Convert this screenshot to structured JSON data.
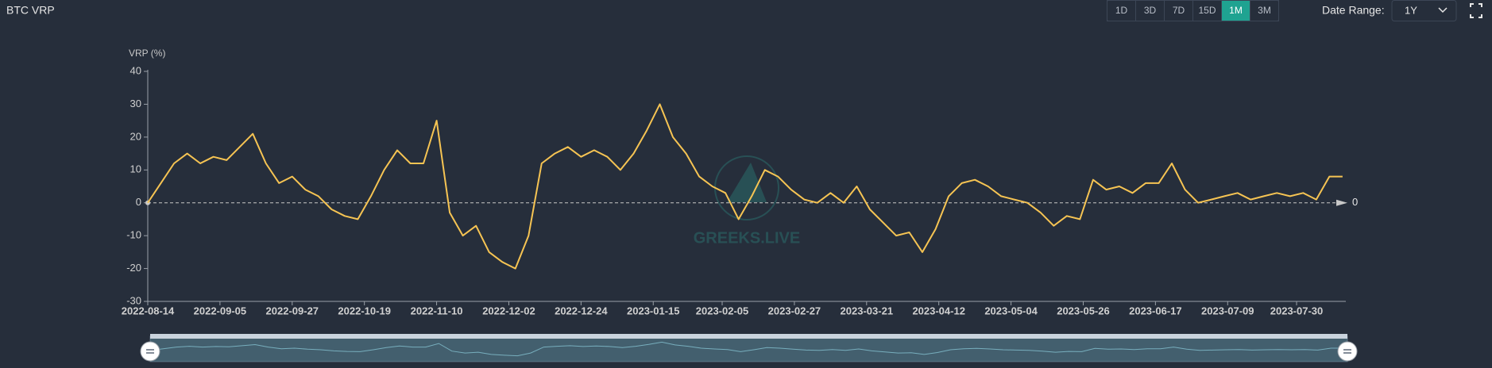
{
  "chart_data": {
    "type": "line",
    "title": "BTC VRP",
    "y_label": "VRP (%)",
    "range_buttons": [
      "1D",
      "3D",
      "7D",
      "15D",
      "1M",
      "3M"
    ],
    "active_range": "1M",
    "date_range_label": "Date Range:",
    "date_range_value": "1Y",
    "watermark": "GREEKS.LIVE",
    "x": [
      "2022-08-14",
      "2022-08-18",
      "2022-08-22",
      "2022-08-26",
      "2022-08-30",
      "2022-09-03",
      "2022-09-07",
      "2022-09-11",
      "2022-09-15",
      "2022-09-19",
      "2022-09-23",
      "2022-09-27",
      "2022-10-01",
      "2022-10-05",
      "2022-10-09",
      "2022-10-13",
      "2022-10-17",
      "2022-10-21",
      "2022-10-25",
      "2022-10-29",
      "2022-11-02",
      "2022-11-06",
      "2022-11-10",
      "2022-11-14",
      "2022-11-18",
      "2022-11-22",
      "2022-11-26",
      "2022-11-30",
      "2022-12-04",
      "2022-12-08",
      "2022-12-12",
      "2022-12-16",
      "2022-12-20",
      "2022-12-24",
      "2022-12-28",
      "2023-01-01",
      "2023-01-05",
      "2023-01-09",
      "2023-01-13",
      "2023-01-17",
      "2023-01-21",
      "2023-01-25",
      "2023-01-29",
      "2023-02-02",
      "2023-02-06",
      "2023-02-10",
      "2023-02-14",
      "2023-02-18",
      "2023-02-22",
      "2023-02-26",
      "2023-03-02",
      "2023-03-06",
      "2023-03-10",
      "2023-03-14",
      "2023-03-18",
      "2023-03-22",
      "2023-03-26",
      "2023-03-30",
      "2023-04-03",
      "2023-04-07",
      "2023-04-11",
      "2023-04-15",
      "2023-04-19",
      "2023-04-23",
      "2023-04-27",
      "2023-05-01",
      "2023-05-05",
      "2023-05-09",
      "2023-05-13",
      "2023-05-17",
      "2023-05-21",
      "2023-05-25",
      "2023-05-29",
      "2023-06-02",
      "2023-06-06",
      "2023-06-10",
      "2023-06-14",
      "2023-06-18",
      "2023-06-22",
      "2023-06-26",
      "2023-06-30",
      "2023-07-04",
      "2023-07-08",
      "2023-07-12",
      "2023-07-16",
      "2023-07-20",
      "2023-07-24",
      "2023-07-28",
      "2023-08-01",
      "2023-08-05",
      "2023-08-09",
      "2023-08-13"
    ],
    "series": [
      {
        "name": "BTC VRP",
        "color": "#f6c453",
        "values": [
          0,
          6,
          12,
          15,
          12,
          14,
          13,
          17,
          21,
          12,
          6,
          8,
          4,
          2,
          -2,
          -4,
          -5,
          2,
          10,
          16,
          12,
          12,
          25,
          -3,
          -10,
          -7,
          -15,
          -18,
          -20,
          -10,
          12,
          15,
          17,
          14,
          16,
          14,
          10,
          15,
          22,
          30,
          20,
          15,
          8,
          5,
          3,
          -5,
          2,
          10,
          8,
          4,
          1,
          0,
          3,
          0,
          5,
          -2,
          -6,
          -10,
          -9,
          -15,
          -8,
          2,
          6,
          7,
          5,
          2,
          1,
          0,
          -3,
          -7,
          -4,
          -5,
          7,
          4,
          5,
          3,
          6,
          6,
          12,
          4,
          0,
          1,
          2,
          3,
          1,
          2,
          3,
          2,
          3,
          1,
          8,
          8
        ]
      }
    ],
    "xlim": [
      "2022-08-14",
      "2023-08-14"
    ],
    "xticks": [
      "2022-08-14",
      "2022-09-05",
      "2022-09-27",
      "2022-10-19",
      "2022-11-10",
      "2022-12-02",
      "2022-12-24",
      "2023-01-15",
      "2023-02-05",
      "2023-02-27",
      "2023-03-21",
      "2023-04-12",
      "2023-05-04",
      "2023-05-26",
      "2023-06-17",
      "2023-07-09",
      "2023-07-30"
    ],
    "ylim": [
      -30,
      40
    ],
    "yticks": [
      -30,
      -20,
      -10,
      0,
      10,
      20,
      30,
      40
    ],
    "markline": 0,
    "grid": false
  }
}
